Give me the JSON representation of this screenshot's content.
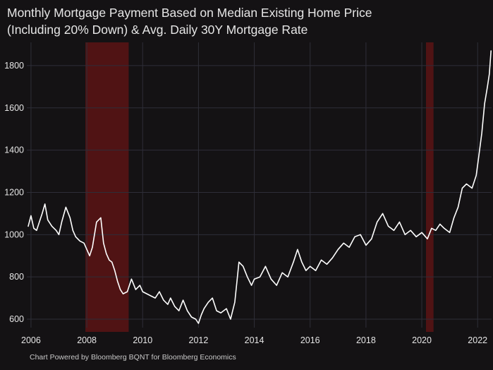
{
  "chart_data": {
    "type": "line",
    "title": "Monthly Mortgage Payment Based on Median Existing Home Price",
    "subtitle": "(Including 20% Down) & Avg. Daily 30Y Mortgage Rate",
    "xlabel": "",
    "ylabel": "",
    "xlim": [
      2005.85,
      2022.5
    ],
    "ylim": [
      560,
      1910
    ],
    "x_ticks": [
      "2006",
      "2008",
      "2010",
      "2012",
      "2014",
      "2016",
      "2018",
      "2020",
      "2022"
    ],
    "y_ticks": [
      "600",
      "800",
      "1000",
      "1200",
      "1400",
      "1600",
      "1800"
    ],
    "grid": true,
    "recessions": [
      {
        "start": 2007.95,
        "end": 2009.5
      },
      {
        "start": 2020.15,
        "end": 2020.42
      }
    ],
    "series": [
      {
        "line_color": "#ffffff",
        "x": [
          2005.9,
          2006.0,
          2006.1,
          2006.2,
          2006.3,
          2006.4,
          2006.5,
          2006.6,
          2006.75,
          2006.9,
          2007.0,
          2007.1,
          2007.25,
          2007.4,
          2007.5,
          2007.6,
          2007.75,
          2007.9,
          2008.0,
          2008.1,
          2008.2,
          2008.35,
          2008.5,
          2008.6,
          2008.7,
          2008.8,
          2008.9,
          2009.0,
          2009.1,
          2009.2,
          2009.3,
          2009.45,
          2009.6,
          2009.75,
          2009.9,
          2010.0,
          2010.15,
          2010.3,
          2010.45,
          2010.6,
          2010.75,
          2010.9,
          2011.0,
          2011.15,
          2011.3,
          2011.45,
          2011.6,
          2011.75,
          2011.9,
          2012.0,
          2012.1,
          2012.2,
          2012.35,
          2012.5,
          2012.65,
          2012.8,
          2013.0,
          2013.15,
          2013.3,
          2013.45,
          2013.6,
          2013.75,
          2013.9,
          2014.0,
          2014.2,
          2014.4,
          2014.6,
          2014.8,
          2015.0,
          2015.2,
          2015.4,
          2015.55,
          2015.7,
          2015.85,
          2016.0,
          2016.2,
          2016.4,
          2016.6,
          2016.8,
          2017.0,
          2017.2,
          2017.4,
          2017.6,
          2017.8,
          2018.0,
          2018.2,
          2018.4,
          2018.6,
          2018.8,
          2019.0,
          2019.2,
          2019.4,
          2019.6,
          2019.8,
          2020.0,
          2020.2,
          2020.35,
          2020.5,
          2020.65,
          2020.8,
          2021.0,
          2021.15,
          2021.3,
          2021.45,
          2021.6,
          2021.8,
          2021.95,
          2022.05,
          2022.15,
          2022.25,
          2022.35,
          2022.42,
          2022.48
        ],
        "values": [
          1040,
          1090,
          1030,
          1020,
          1060,
          1100,
          1145,
          1070,
          1040,
          1020,
          1000,
          1060,
          1130,
          1080,
          1020,
          990,
          970,
          960,
          930,
          900,
          940,
          1060,
          1080,
          960,
          910,
          880,
          870,
          830,
          780,
          740,
          720,
          730,
          790,
          740,
          760,
          730,
          720,
          710,
          700,
          730,
          690,
          670,
          700,
          660,
          640,
          690,
          640,
          610,
          600,
          580,
          620,
          650,
          680,
          700,
          640,
          630,
          650,
          600,
          680,
          870,
          850,
          800,
          760,
          790,
          800,
          850,
          790,
          760,
          820,
          800,
          870,
          930,
          870,
          830,
          850,
          830,
          880,
          860,
          890,
          930,
          960,
          940,
          990,
          1000,
          950,
          980,
          1060,
          1100,
          1040,
          1020,
          1060,
          1000,
          1020,
          990,
          1010,
          980,
          1030,
          1020,
          1050,
          1030,
          1010,
          1080,
          1130,
          1220,
          1240,
          1220,
          1280,
          1380,
          1480,
          1620,
          1700,
          1760,
          1870
        ]
      }
    ]
  },
  "footer": "Chart Powered by Bloomberg BQNT for Bloomberg Economics",
  "colors": {
    "background": "#141214",
    "line": "#ffffff",
    "recession_band": "#5a1414",
    "gridline": "#2e2e38"
  }
}
